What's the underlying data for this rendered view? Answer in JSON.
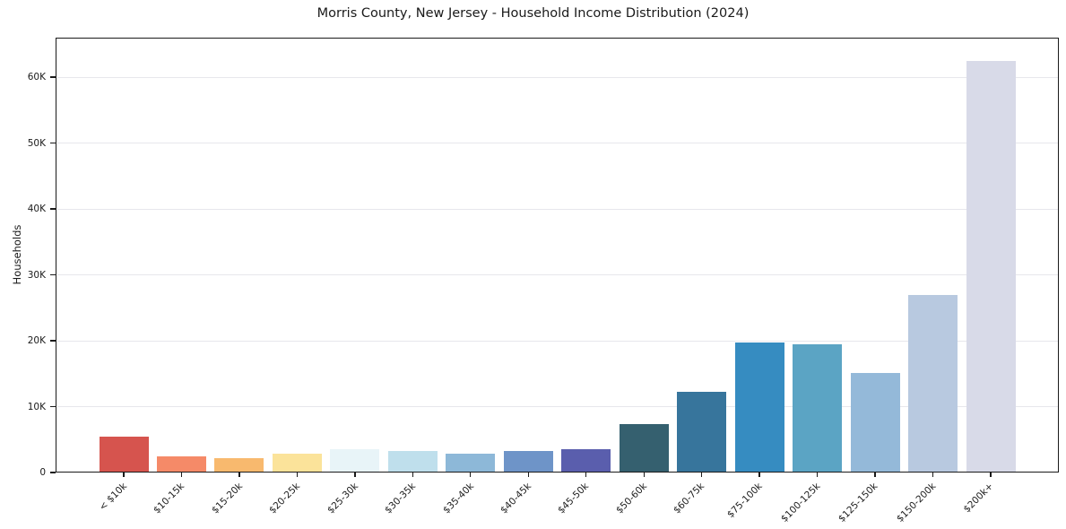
{
  "chart_data": {
    "type": "bar",
    "title": "Morris County, New Jersey - Household Income Distribution (2024)",
    "xlabel": "",
    "ylabel": "Households",
    "categories": [
      "< $10k",
      "$10-15k",
      "$15-20k",
      "$20-25k",
      "$25-30k",
      "$30-35k",
      "$35-40k",
      "$40-45k",
      "$45-50k",
      "$50-60k",
      "$60-75k",
      "$75-100k",
      "$100-125k",
      "$125-150k",
      "$150-200k",
      "$200k+"
    ],
    "values": [
      5400,
      2400,
      2200,
      2900,
      3500,
      3300,
      2900,
      3200,
      3600,
      7300,
      12200,
      19700,
      19500,
      15100,
      27000,
      62400
    ],
    "bar_colors": [
      "#d6544e",
      "#f58a68",
      "#f8b96e",
      "#fbe39a",
      "#e8f4f8",
      "#bfdfec",
      "#8db8d8",
      "#6e94c8",
      "#5a5ead",
      "#35606f",
      "#37759c",
      "#368cc1",
      "#5ba4c4",
      "#94b9d9",
      "#b8c9e0",
      "#d8dae8"
    ],
    "ylim": [
      0,
      66000
    ],
    "ytick_values": [
      0,
      10000,
      20000,
      30000,
      40000,
      50000,
      60000
    ],
    "ytick_labels": [
      "0",
      "10K",
      "20K",
      "30K",
      "40K",
      "50K",
      "60K"
    ],
    "grid": true,
    "grid_color": "#e7e7ec",
    "axis_color": "#1a1a1a",
    "legend_position": "none"
  }
}
